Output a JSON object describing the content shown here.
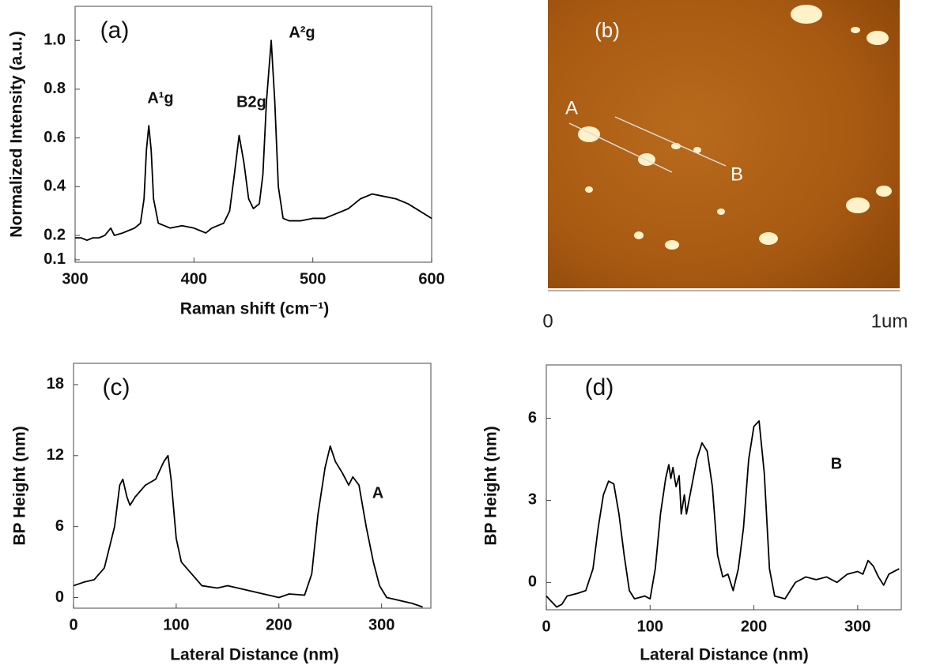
{
  "chart_data": [
    {
      "type": "line",
      "panel_label": "(a)",
      "x_label": "Raman shift (cm⁻¹)",
      "y_label": "Normalized Intensity (a.u.)",
      "color": "#000000",
      "x": [
        300,
        305,
        310,
        315,
        320,
        325,
        330,
        333,
        340,
        345,
        350,
        355,
        358,
        360,
        362,
        364,
        366,
        370,
        375,
        380,
        390,
        400,
        405,
        410,
        415,
        420,
        425,
        430,
        434,
        438,
        442,
        446,
        450,
        455,
        458,
        461,
        465,
        468,
        471,
        475,
        480,
        490,
        500,
        510,
        520,
        530,
        540,
        550,
        560,
        570,
        580,
        590,
        600
      ],
      "values": [
        0.19,
        0.19,
        0.18,
        0.19,
        0.19,
        0.2,
        0.23,
        0.2,
        0.21,
        0.22,
        0.23,
        0.25,
        0.35,
        0.55,
        0.65,
        0.55,
        0.35,
        0.25,
        0.24,
        0.23,
        0.24,
        0.23,
        0.22,
        0.21,
        0.23,
        0.24,
        0.25,
        0.3,
        0.45,
        0.61,
        0.5,
        0.35,
        0.31,
        0.33,
        0.45,
        0.75,
        1.0,
        0.75,
        0.4,
        0.27,
        0.26,
        0.26,
        0.27,
        0.27,
        0.29,
        0.31,
        0.35,
        0.37,
        0.36,
        0.35,
        0.33,
        0.3,
        0.27
      ],
      "xlim": [
        300,
        600
      ],
      "ylim": [
        0.09,
        1.14
      ],
      "xticks": [
        300,
        400,
        500,
        600
      ],
      "yticks": [
        0.1,
        0.2,
        0.4,
        0.6,
        0.8,
        {
          "value": 1,
          "label": "1.0"
        }
      ],
      "annotations": [
        "A¹g",
        "B2g",
        "A²g"
      ]
    },
    {
      "type": "line",
      "panel_label": "(c)",
      "x_label": "Lateral Distance (nm)",
      "y_label": "BP Height (nm)",
      "color": "#000000",
      "x": [
        0,
        10,
        20,
        30,
        40,
        45,
        48,
        52,
        55,
        60,
        70,
        80,
        88,
        92,
        95,
        100,
        105,
        115,
        125,
        140,
        150,
        170,
        190,
        200,
        210,
        225,
        232,
        238,
        245,
        250,
        255,
        262,
        268,
        272,
        278,
        285,
        292,
        298,
        305,
        320,
        330,
        340
      ],
      "values": [
        1.0,
        1.3,
        1.5,
        2.5,
        6,
        9.5,
        10,
        8.5,
        7.8,
        8.5,
        9.5,
        10,
        11.5,
        12,
        10,
        5,
        3,
        2,
        1,
        0.8,
        1.0,
        0.6,
        0.2,
        0,
        0.3,
        0.2,
        2,
        7,
        11,
        12.8,
        11.5,
        10.5,
        9.5,
        10.2,
        9.5,
        6,
        3,
        1,
        0,
        -0.3,
        -0.5,
        -0.8
      ],
      "xlim": [
        0,
        348
      ],
      "ylim": [
        -0.9,
        19.8
      ],
      "xticks": [
        0,
        100,
        200,
        300
      ],
      "yticks": [
        0,
        6,
        12,
        18
      ],
      "annotations": [
        "A"
      ]
    },
    {
      "type": "line",
      "panel_label": "(d)",
      "x_label": "Lateral Distance (nm)",
      "y_label": "BP Height (nm)",
      "color": "#000000",
      "x": [
        0,
        5,
        10,
        15,
        20,
        30,
        38,
        45,
        50,
        55,
        60,
        65,
        70,
        75,
        80,
        85,
        95,
        100,
        105,
        110,
        115,
        118,
        120,
        122,
        125,
        128,
        130,
        133,
        135,
        140,
        145,
        150,
        155,
        160,
        165,
        170,
        175,
        180,
        185,
        190,
        195,
        200,
        205,
        210,
        215,
        220,
        230,
        235,
        240,
        250,
        260,
        270,
        280,
        290,
        300,
        305,
        310,
        315,
        320,
        325,
        330,
        340
      ],
      "values": [
        -0.5,
        -0.7,
        -0.9,
        -0.8,
        -0.5,
        -0.4,
        -0.3,
        0.5,
        2,
        3.2,
        3.7,
        3.6,
        2.5,
        1,
        -0.3,
        -0.6,
        -0.5,
        -0.6,
        0.5,
        2.5,
        3.8,
        4.3,
        3.8,
        4.2,
        3.5,
        3.9,
        2.5,
        3.2,
        2.5,
        3.5,
        4.5,
        5.1,
        4.8,
        3.5,
        1,
        0.2,
        0.3,
        -0.3,
        0.5,
        2,
        4.5,
        5.7,
        5.9,
        4,
        0.5,
        -0.5,
        -0.6,
        -0.3,
        0.0,
        0.2,
        0.1,
        0.2,
        0,
        0.3,
        0.4,
        0.3,
        0.8,
        0.6,
        0.2,
        -0.1,
        0.3,
        0.5
      ],
      "xlim": [
        0,
        342
      ],
      "ylim": [
        -1,
        7.95
      ],
      "xticks": [
        0,
        100,
        200,
        300
      ],
      "yticks": [
        0,
        3,
        6
      ],
      "annotations": [
        "B"
      ]
    }
  ],
  "afm_image": {
    "panel_label": "(b)",
    "markers": [
      "A",
      "B"
    ],
    "scale_labels": [
      "0",
      "1um"
    ]
  }
}
